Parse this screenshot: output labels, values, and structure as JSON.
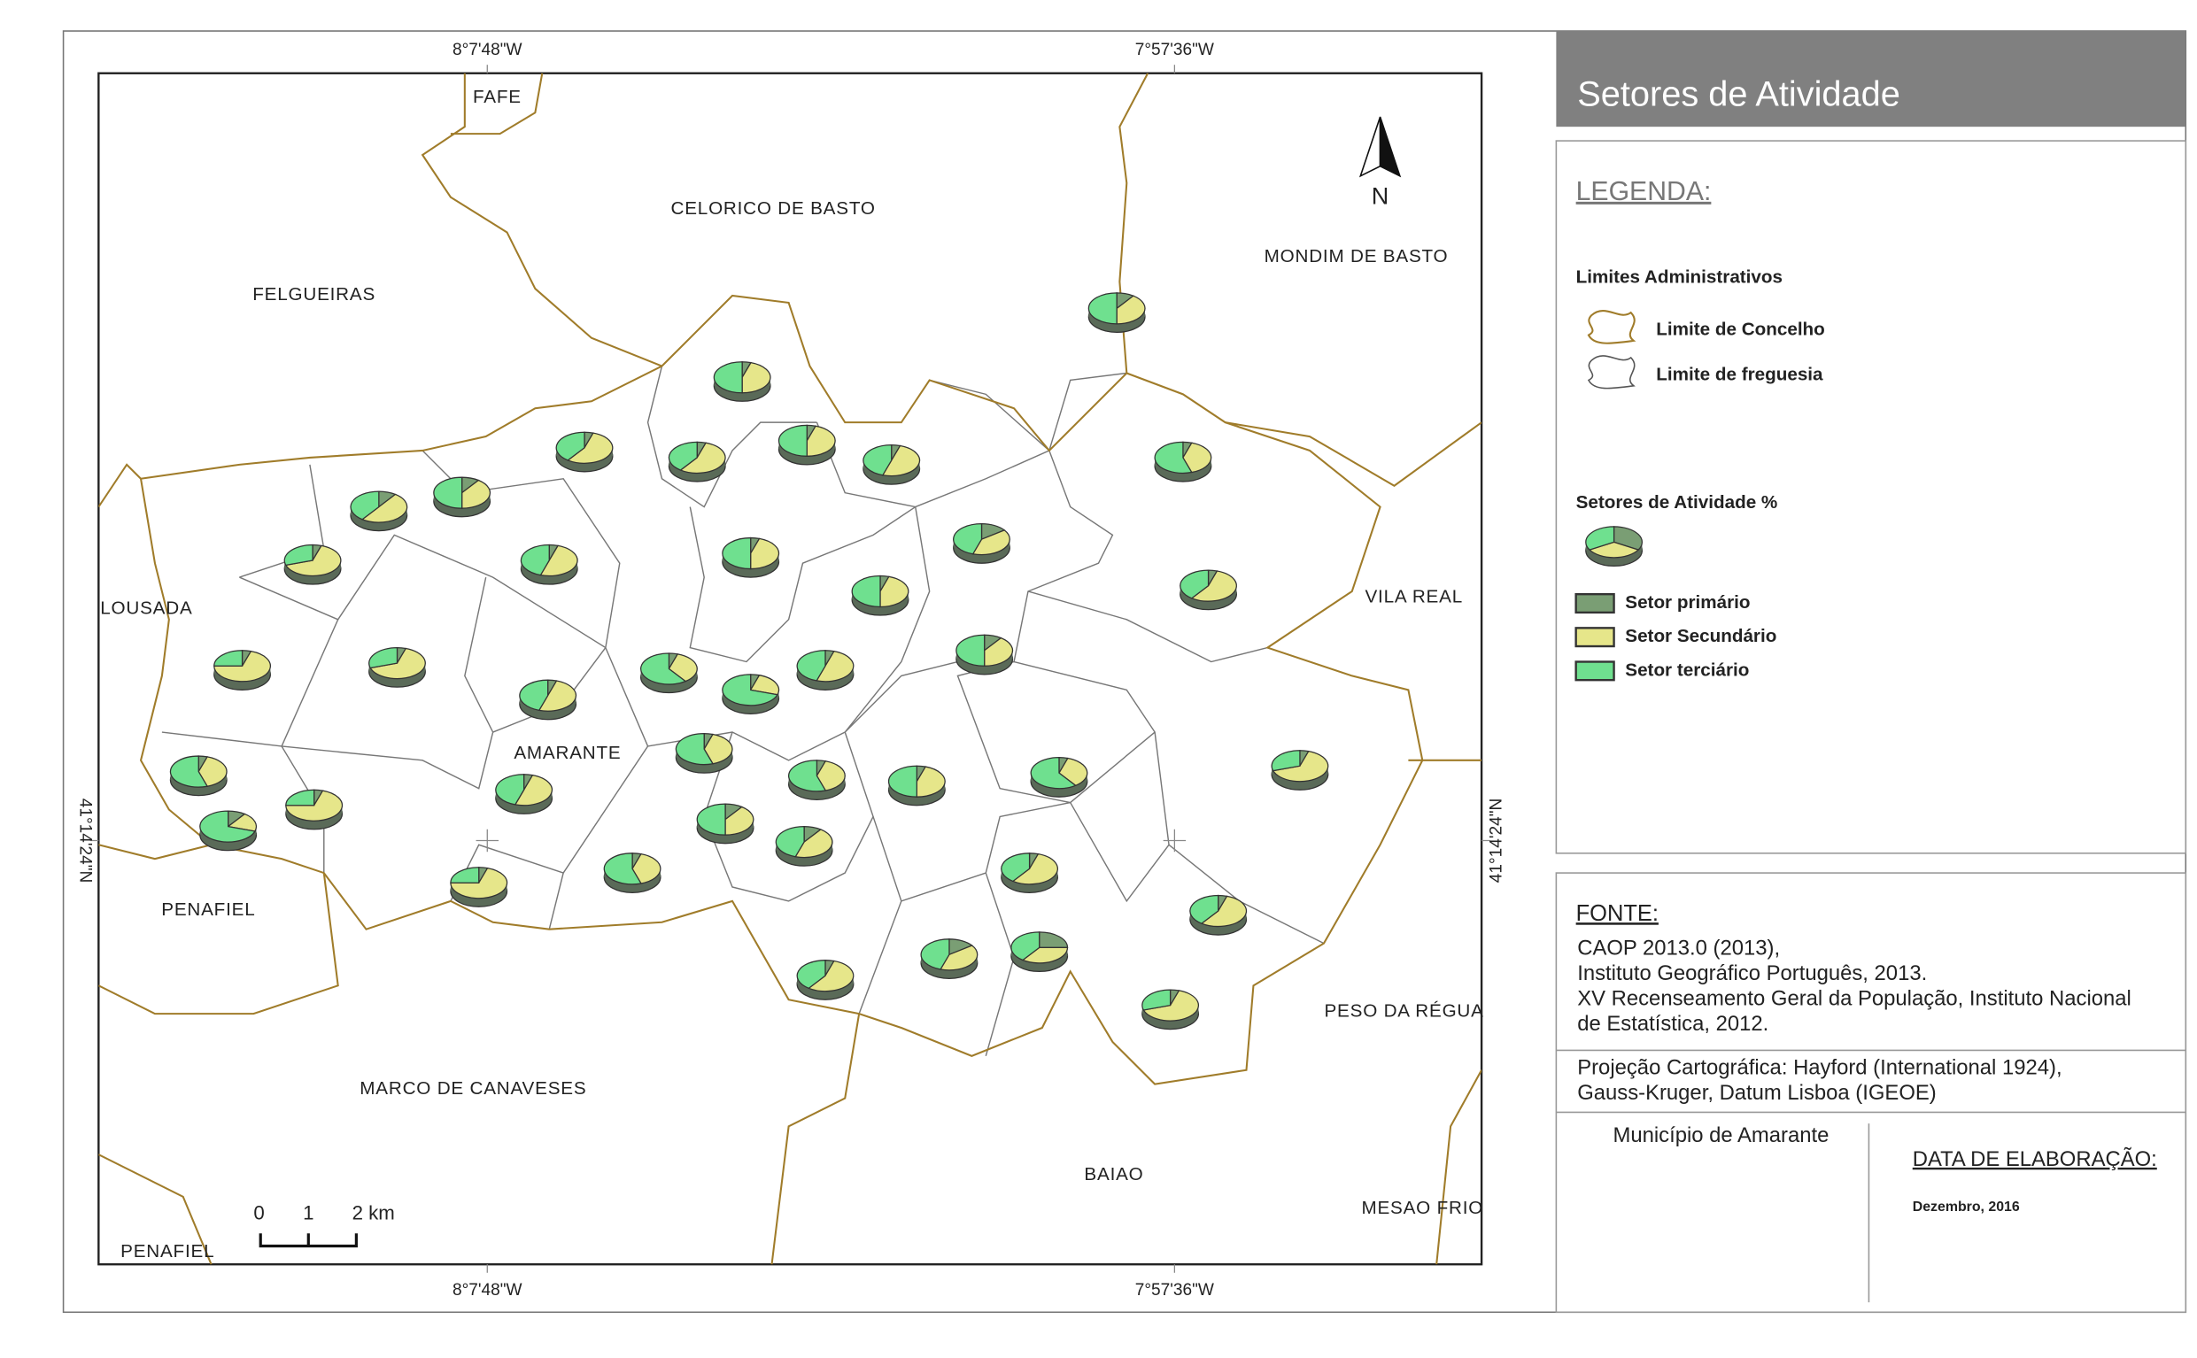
{
  "title": "Setores de Atividade",
  "legend": {
    "heading": "LEGENDA:",
    "admin_heading": "Limites Administrativos",
    "concelho": "Limite de Concelho",
    "freguesia": "Limite de freguesia",
    "sectors_heading": "Setores de Atividade %",
    "sectors": [
      {
        "name": "Setor primário",
        "color": "#7a9e74"
      },
      {
        "name": "Setor Secundário",
        "color": "#e6e68a"
      },
      {
        "name": "Setor terciário",
        "color": "#6fe08f"
      }
    ]
  },
  "map": {
    "north": "N",
    "coords": {
      "lon_west": "8°7'48\"W",
      "lon_east": "7°57'36\"W",
      "lat": "41°14'24\"N"
    },
    "scale": [
      "0",
      "1",
      "2 km"
    ],
    "labels": [
      "FAFE",
      "CELORICO DE BASTO",
      "FELGUEIRAS",
      "MONDIM DE BASTO",
      "LOUSADA",
      "VILA REAL",
      "AMARANTE",
      "PENAFIEL",
      "PESO DA RÉGUA",
      "MARCO DE CANAVESES",
      "BAIAO",
      "MESAO FRIO",
      "PENAFIEL"
    ]
  },
  "pies": {
    "values": [
      [
        10,
        40,
        50
      ],
      [
        5,
        45,
        50
      ],
      [
        5,
        55,
        40
      ],
      [
        5,
        55,
        40
      ],
      [
        5,
        45,
        50
      ],
      [
        5,
        50,
        45
      ],
      [
        5,
        40,
        55
      ],
      [
        10,
        50,
        40
      ],
      [
        10,
        40,
        50
      ],
      [
        5,
        65,
        30
      ],
      [
        5,
        50,
        45
      ],
      [
        5,
        45,
        50
      ],
      [
        15,
        40,
        45
      ],
      [
        5,
        45,
        50
      ],
      [
        5,
        55,
        40
      ],
      [
        5,
        70,
        25
      ],
      [
        5,
        65,
        30
      ],
      [
        5,
        35,
        60
      ],
      [
        5,
        50,
        45
      ],
      [
        10,
        40,
        50
      ],
      [
        5,
        50,
        45
      ],
      [
        5,
        25,
        70
      ],
      [
        5,
        40,
        55
      ],
      [
        5,
        40,
        55
      ],
      [
        5,
        40,
        55
      ],
      [
        5,
        45,
        50
      ],
      [
        5,
        35,
        60
      ],
      [
        5,
        65,
        30
      ],
      [
        5,
        50,
        45
      ],
      [
        5,
        70,
        25
      ],
      [
        10,
        20,
        70
      ],
      [
        10,
        40,
        50
      ],
      [
        10,
        45,
        45
      ],
      [
        5,
        40,
        55
      ],
      [
        5,
        55,
        40
      ],
      [
        5,
        70,
        25
      ],
      [
        5,
        55,
        40
      ],
      [
        15,
        40,
        45
      ],
      [
        25,
        35,
        40
      ],
      [
        5,
        55,
        40
      ],
      [
        5,
        65,
        30
      ]
    ]
  },
  "source": {
    "heading": "FONTE:",
    "lines": [
      "CAOP 2013.0 (2013),",
      "Instituto Geográfico Português, 2013.",
      "XV Recenseamento Geral da População, Instituto Nacional",
      "de Estatística, 2012."
    ],
    "projection": [
      "Projeção Cartográfica: Hayford (International 1924),",
      "Gauss-Kruger, Datum Lisboa (IGEOE)"
    ]
  },
  "footer": {
    "municipality": "Município de Amarante",
    "date_heading": "DATA DE ELABORAÇÃO:",
    "date": "Dezembro, 2016"
  }
}
